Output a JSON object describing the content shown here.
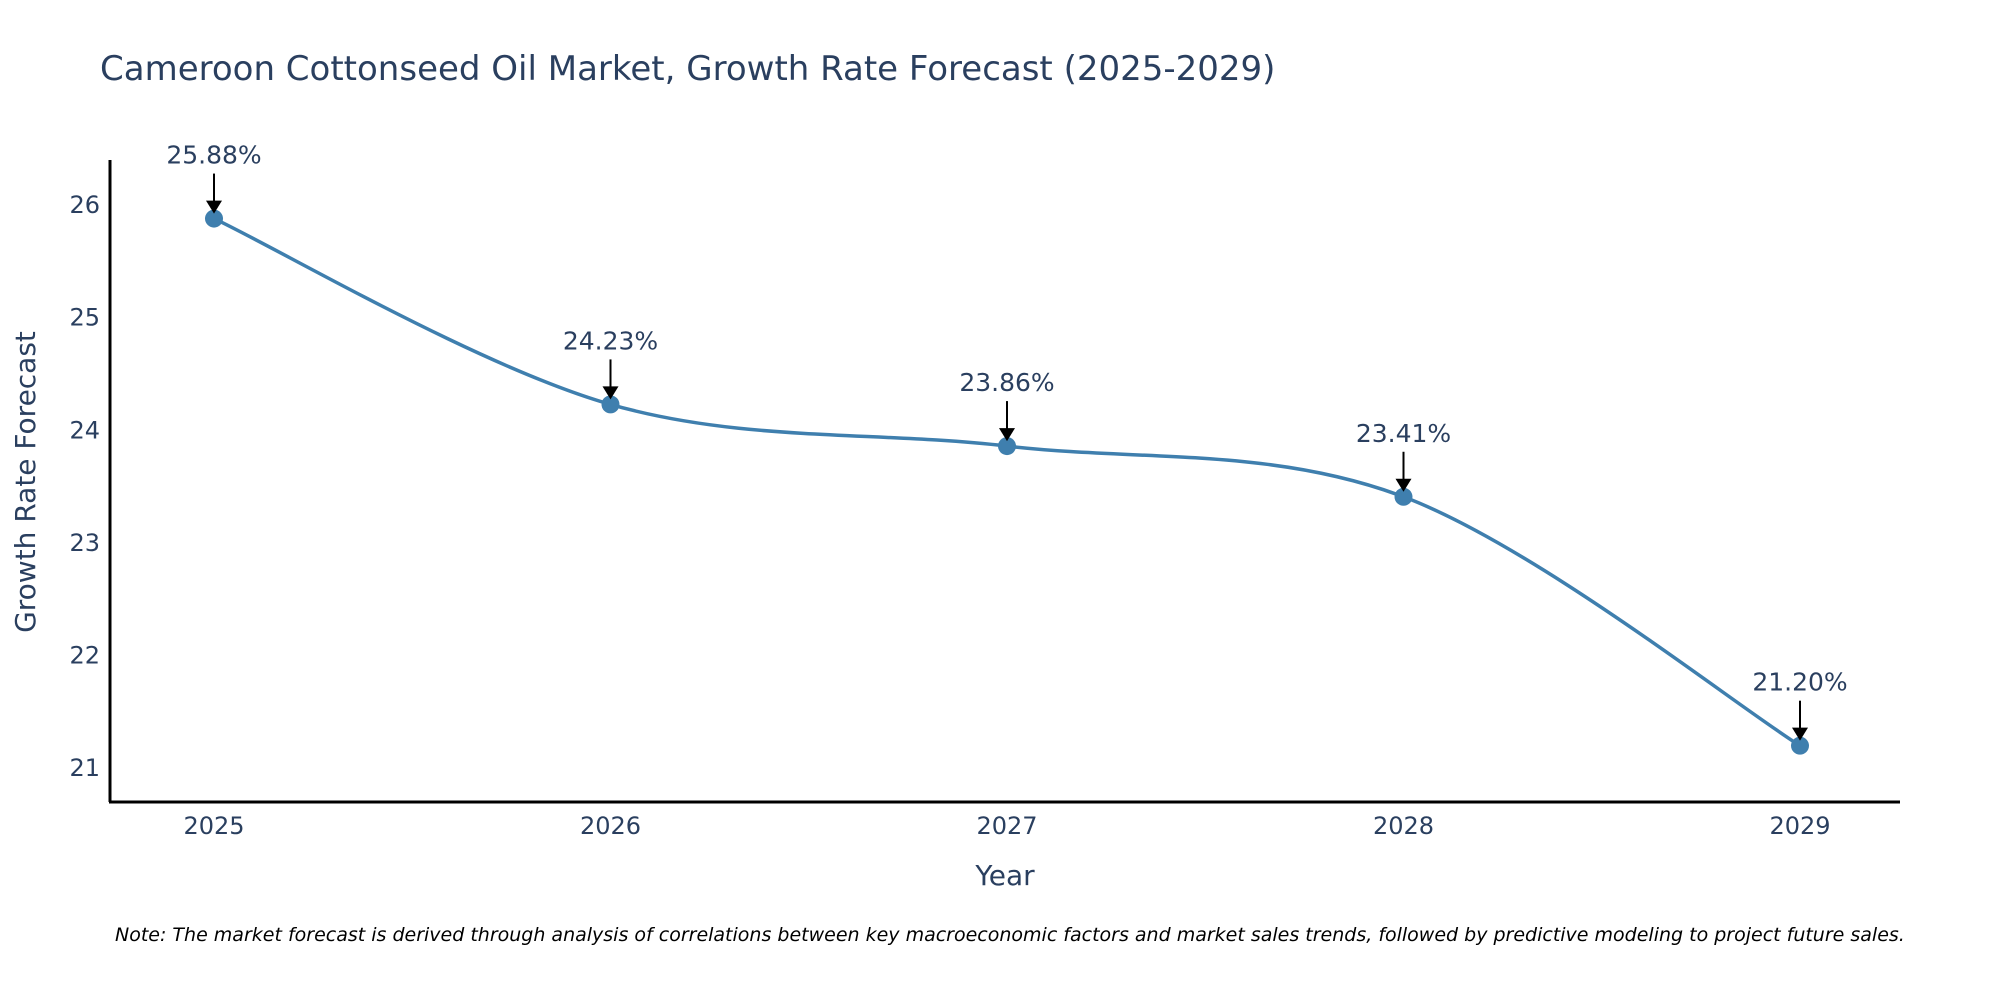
{
  "chart_data": {
    "type": "line",
    "title": "Cameroon Cottonseed Oil Market, Growth Rate Forecast (2025-2029)",
    "xlabel": "Year",
    "ylabel": "Growth Rate Forecast",
    "categories": [
      "2025",
      "2026",
      "2027",
      "2028",
      "2029"
    ],
    "values": [
      25.88,
      24.23,
      23.86,
      23.41,
      21.2
    ],
    "data_labels": [
      "25.88%",
      "24.23%",
      "23.86%",
      "23.41%",
      "21.20%"
    ],
    "ylim": [
      20.7,
      26.4
    ],
    "yticks": [
      21,
      22,
      23,
      24,
      25,
      26
    ],
    "ytick_labels": [
      "21",
      "22",
      "23",
      "24",
      "25",
      "26"
    ],
    "line_color": "#3f7fae",
    "grid": false,
    "note": "Note: The market forecast is derived through analysis of correlations between key macroeconomic factors and market sales trends, followed by predictive modeling to project future sales."
  }
}
